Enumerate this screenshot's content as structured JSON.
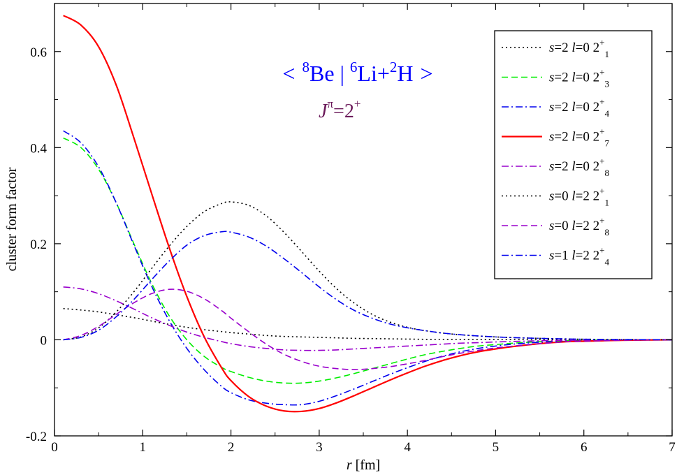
{
  "chart_data": {
    "type": "line",
    "title": "< 8Be | 6Li+2H >",
    "title_parts": {
      "bra_open": "<",
      "be_mass": "8",
      "be_symbol": "Be",
      "separator": "|",
      "li_mass": "6",
      "li_symbol": "Li+",
      "h_mass": "2",
      "h_symbol": "H",
      "ket_close": ">"
    },
    "subtitle_parts": {
      "j": "J",
      "pi": "π",
      "eq": "=2",
      "plus": "+"
    },
    "title_color": "#0000ff",
    "subtitle_color": "#6b1a5a",
    "xlabel_parts": {
      "var": "r",
      "unit": " [fm]"
    },
    "ylabel": "cluster form factor",
    "xlim": [
      0,
      7
    ],
    "ylim": [
      -0.2,
      0.7
    ],
    "xticks": [
      0,
      1,
      2,
      3,
      4,
      5,
      6,
      7
    ],
    "xtick_labels": [
      "0",
      "1",
      "2",
      "3",
      "4",
      "5",
      "6",
      "7"
    ],
    "yticks": [
      -0.2,
      0,
      0.2,
      0.4,
      0.6
    ],
    "ytick_labels": [
      "-0.2",
      "0",
      "0.2",
      "0.4",
      "0.6"
    ],
    "grid": false,
    "legend_position": "top-right",
    "x": [
      0.1,
      0.3,
      0.5,
      0.7,
      0.9,
      1.1,
      1.3,
      1.5,
      1.7,
      1.9,
      2.0,
      2.2,
      2.4,
      2.6,
      2.8,
      3.0,
      3.2,
      3.4,
      3.6,
      3.8,
      4.0,
      4.2,
      4.4,
      4.6,
      4.8,
      5.0,
      5.2,
      5.5,
      5.8,
      6.0,
      6.5,
      7.0
    ],
    "series": [
      {
        "s": "2",
        "l": "0",
        "state": "1",
        "color": "#000000",
        "dash": "2,4",
        "values": [
          0.065,
          0.062,
          0.058,
          0.052,
          0.046,
          0.039,
          0.032,
          0.026,
          0.021,
          0.017,
          0.015,
          0.012,
          0.009,
          0.007,
          0.006,
          0.005,
          0.004,
          0.003,
          0.0025,
          0.002,
          0.0015,
          0.001,
          0.001,
          0.0008,
          0.0006,
          0.0005,
          0.0004,
          0.0002,
          0.0001,
          0.0,
          0.0,
          0.0
        ]
      },
      {
        "s": "2",
        "l": "0",
        "state": "3",
        "color": "#00ee00",
        "dash": "9,5",
        "values": [
          0.42,
          0.4,
          0.355,
          0.285,
          0.2,
          0.118,
          0.05,
          0.0,
          -0.035,
          -0.058,
          -0.066,
          -0.078,
          -0.086,
          -0.09,
          -0.09,
          -0.086,
          -0.079,
          -0.07,
          -0.06,
          -0.05,
          -0.04,
          -0.031,
          -0.024,
          -0.018,
          -0.013,
          -0.01,
          -0.007,
          -0.004,
          -0.002,
          -0.001,
          0.0,
          0.0
        ]
      },
      {
        "s": "2",
        "l": "0",
        "state": "4",
        "color": "#0000ee",
        "dash": "10,4,2,4",
        "values": [
          0.435,
          0.41,
          0.36,
          0.285,
          0.197,
          0.112,
          0.04,
          -0.018,
          -0.063,
          -0.098,
          -0.11,
          -0.125,
          -0.132,
          -0.135,
          -0.135,
          -0.128,
          -0.116,
          -0.102,
          -0.087,
          -0.072,
          -0.058,
          -0.045,
          -0.034,
          -0.025,
          -0.018,
          -0.013,
          -0.009,
          -0.005,
          -0.003,
          -0.002,
          -0.0005,
          0.0
        ]
      },
      {
        "s": "2",
        "l": "0",
        "state": "7",
        "color": "#ff0000",
        "dash": "",
        "values": [
          0.675,
          0.655,
          0.61,
          0.53,
          0.42,
          0.305,
          0.192,
          0.09,
          0.005,
          -0.06,
          -0.085,
          -0.118,
          -0.138,
          -0.148,
          -0.149,
          -0.143,
          -0.131,
          -0.116,
          -0.1,
          -0.084,
          -0.069,
          -0.055,
          -0.043,
          -0.033,
          -0.025,
          -0.019,
          -0.014,
          -0.008,
          -0.004,
          -0.003,
          -0.0008,
          0.0
        ]
      },
      {
        "s": "2",
        "l": "0",
        "state": "8",
        "color": "#9900cc",
        "dash": "10,4,2,4",
        "values": [
          0.11,
          0.106,
          0.096,
          0.081,
          0.064,
          0.046,
          0.03,
          0.016,
          0.005,
          -0.004,
          -0.008,
          -0.014,
          -0.018,
          -0.021,
          -0.022,
          -0.022,
          -0.021,
          -0.019,
          -0.017,
          -0.015,
          -0.013,
          -0.011,
          -0.009,
          -0.007,
          -0.006,
          -0.0045,
          -0.0035,
          -0.002,
          -0.001,
          -0.0008,
          -0.0002,
          0.0
        ]
      },
      {
        "s": "0",
        "l": "2",
        "state": "1",
        "color": "#000000",
        "dash": "2,4",
        "values": [
          0.0,
          0.006,
          0.025,
          0.058,
          0.1,
          0.148,
          0.195,
          0.236,
          0.267,
          0.284,
          0.287,
          0.28,
          0.258,
          0.224,
          0.184,
          0.143,
          0.106,
          0.076,
          0.053,
          0.037,
          0.026,
          0.019,
          0.014,
          0.0105,
          0.008,
          0.006,
          0.0045,
          0.003,
          0.0018,
          0.0012,
          0.0004,
          0.0
        ]
      },
      {
        "s": "0",
        "l": "2",
        "state": "8",
        "color": "#9900cc",
        "dash": "9,5",
        "values": [
          0.0,
          0.009,
          0.028,
          0.053,
          0.077,
          0.096,
          0.105,
          0.101,
          0.085,
          0.06,
          0.045,
          0.017,
          -0.009,
          -0.03,
          -0.045,
          -0.055,
          -0.06,
          -0.062,
          -0.06,
          -0.056,
          -0.05,
          -0.043,
          -0.035,
          -0.028,
          -0.022,
          -0.017,
          -0.013,
          -0.008,
          -0.004,
          -0.003,
          -0.0008,
          0.0
        ]
      },
      {
        "s": "1",
        "l": "2",
        "state": "4",
        "color": "#0000ee",
        "dash": "10,4,2,4",
        "values": [
          0.0,
          0.005,
          0.02,
          0.048,
          0.084,
          0.125,
          0.164,
          0.197,
          0.217,
          0.225,
          0.224,
          0.214,
          0.195,
          0.169,
          0.14,
          0.11,
          0.083,
          0.061,
          0.045,
          0.033,
          0.025,
          0.019,
          0.014,
          0.0105,
          0.008,
          0.006,
          0.0045,
          0.003,
          0.0018,
          0.0012,
          0.0004,
          0.0
        ]
      }
    ]
  }
}
